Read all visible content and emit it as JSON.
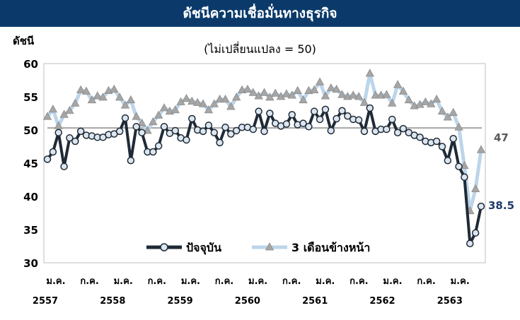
{
  "chart_data": {
    "type": "line",
    "title": "ดัชนีความเชื่อมั่นทางธุรกิจ",
    "subtitle": "(ไม่เปลี่ยนแปลง = 50)",
    "ylabel": "ดัชนี",
    "ylim": [
      30,
      60
    ],
    "yticks": [
      30,
      35,
      40,
      45,
      50,
      55,
      60
    ],
    "reference_line": 50.3,
    "x_month_labels": [
      "ม.ค.",
      "ก.ค.",
      "ม.ค.",
      "ก.ค.",
      "ม.ค.",
      "ก.ค.",
      "ม.ค.",
      "ก.ค.",
      "ม.ค.",
      "ก.ค.",
      "ม.ค.",
      "ก.ค.",
      "ม.ค."
    ],
    "x_year_labels": [
      "2557",
      "2558",
      "2559",
      "2560",
      "2561",
      "2562",
      "2563"
    ],
    "grid": false,
    "legend_position": "bottom-center",
    "end_labels": {
      "current": "38.5",
      "three_month": "47"
    },
    "series": [
      {
        "name": "ปัจจุบัน",
        "color": "#1f2a36",
        "values": [
          45.6,
          46.7,
          49.6,
          44.5,
          48.8,
          48.3,
          49.8,
          49.2,
          49.1,
          48.9,
          48.9,
          49.3,
          49.4,
          49.8,
          51.8,
          45.4,
          50.5,
          49.6,
          46.7,
          46.7,
          47.6,
          50.5,
          49.5,
          49.9,
          48.8,
          48.5,
          51.7,
          50.0,
          49.8,
          50.7,
          49.6,
          48.1,
          50.4,
          49.4,
          49.9,
          50.4,
          50.4,
          50.1,
          52.8,
          49.8,
          52.5,
          51.0,
          50.6,
          50.9,
          52.3,
          50.8,
          51.0,
          50.5,
          52.8,
          51.6,
          53.1,
          49.9,
          51.7,
          52.9,
          52.1,
          51.6,
          51.5,
          49.8,
          53.3,
          49.8,
          50.1,
          50.1,
          51.6,
          49.6,
          50.2,
          49.6,
          49.2,
          48.9,
          48.3,
          48.1,
          48.3,
          47.5,
          45.4,
          48.7,
          44.5,
          42.9,
          32.9,
          34.5,
          38.5
        ]
      },
      {
        "name": "3 เดือนข้างหน้า",
        "color": "#bcd5ea",
        "values": [
          52.0,
          53.1,
          50.6,
          52.3,
          52.9,
          54.0,
          56.0,
          55.8,
          54.5,
          55.1,
          54.9,
          55.9,
          56.1,
          54.9,
          53.7,
          54.5,
          52.0,
          51.0,
          49.9,
          51.2,
          52.2,
          53.3,
          52.8,
          53.0,
          54.2,
          54.7,
          54.3,
          54.1,
          53.9,
          53.0,
          53.9,
          54.6,
          54.6,
          53.5,
          54.9,
          56.0,
          56.1,
          55.6,
          55.1,
          55.6,
          54.9,
          55.5,
          55.0,
          55.4,
          55.2,
          55.9,
          54.5,
          55.9,
          56.0,
          57.2,
          55.1,
          56.3,
          56.1,
          55.3,
          55.0,
          55.2,
          55.0,
          54.1,
          58.5,
          55.2,
          55.2,
          55.3,
          54.0,
          56.8,
          55.8,
          54.5,
          53.6,
          53.8,
          54.2,
          53.9,
          54.6,
          52.8,
          51.9,
          52.6,
          50.4,
          44.6,
          37.8,
          41.1,
          47.0
        ]
      }
    ]
  }
}
